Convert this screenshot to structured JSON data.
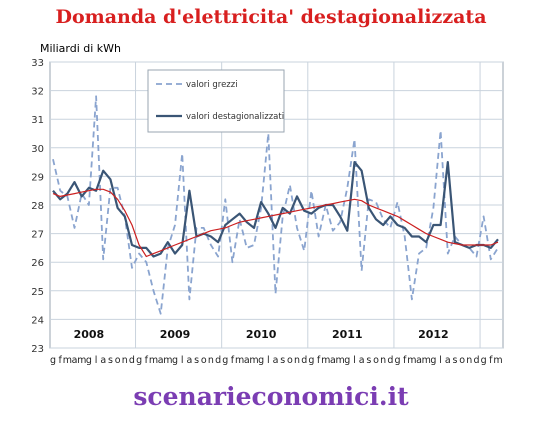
{
  "chart_data": {
    "type": "line",
    "title": "Domanda d'elettricita' destagionalizzata",
    "ylabel": "Miliardi di kWh",
    "ylim": [
      23,
      33
    ],
    "yticks": [
      23,
      24,
      25,
      26,
      27,
      28,
      29,
      30,
      31,
      32,
      33
    ],
    "grid": true,
    "legend_position": "top-left",
    "month_ticks": [
      "g",
      "f",
      "m",
      "a",
      "m",
      "g",
      "l",
      "a",
      "s",
      "o",
      "n",
      "d",
      "g",
      "f",
      "m",
      "a",
      "m",
      "g",
      "l",
      "a",
      "s",
      "o",
      "n",
      "d",
      "g",
      "f",
      "m",
      "a",
      "m",
      "g",
      "l",
      "a",
      "s",
      "o",
      "n",
      "d",
      "g",
      "f",
      "m",
      "a",
      "m",
      "g",
      "l",
      "a",
      "s",
      "o",
      "n",
      "d",
      "g",
      "f",
      "m",
      "a",
      "m",
      "g",
      "l",
      "a",
      "s",
      "o",
      "n",
      "d",
      "g",
      "f",
      "m"
    ],
    "year_labels": [
      {
        "label": "2008",
        "month_index": 5
      },
      {
        "label": "2009",
        "month_index": 17
      },
      {
        "label": "2010",
        "month_index": 29
      },
      {
        "label": "2011",
        "month_index": 41
      },
      {
        "label": "2012",
        "month_index": 53
      }
    ],
    "series": [
      {
        "name": "valori grezzi",
        "color": "#8aa4cf",
        "style": "dashed",
        "values": [
          29.6,
          28.5,
          28.3,
          27.2,
          28.4,
          28.0,
          31.8,
          26.1,
          28.6,
          28.6,
          27.6,
          25.8,
          26.3,
          26.0,
          25.0,
          24.2,
          26.5,
          27.3,
          29.8,
          24.7,
          27.2,
          27.2,
          26.6,
          26.2,
          28.2,
          26.0,
          27.5,
          26.5,
          26.6,
          27.9,
          30.5,
          24.9,
          27.6,
          28.7,
          27.2,
          26.4,
          28.5,
          26.9,
          28.0,
          27.1,
          27.4,
          28.6,
          30.3,
          25.7,
          28.2,
          28.1,
          27.5,
          27.2,
          28.1,
          26.9,
          24.7,
          26.3,
          26.5,
          27.9,
          30.6,
          26.3,
          26.9,
          26.6,
          26.5,
          26.2,
          27.6,
          26.1,
          26.5
        ]
      },
      {
        "name": "valori destagionalizzati",
        "color": "#3a5575",
        "style": "solid",
        "values": [
          28.5,
          28.2,
          28.4,
          28.8,
          28.3,
          28.6,
          28.5,
          29.2,
          28.9,
          27.9,
          27.6,
          26.6,
          26.5,
          26.5,
          26.2,
          26.3,
          26.7,
          26.3,
          26.6,
          28.5,
          26.9,
          27.0,
          26.9,
          26.7,
          27.3,
          27.5,
          27.7,
          27.4,
          27.2,
          28.1,
          27.7,
          27.2,
          27.9,
          27.7,
          28.3,
          27.8,
          27.7,
          27.9,
          28.0,
          28.0,
          27.6,
          27.1,
          29.5,
          29.2,
          27.9,
          27.5,
          27.3,
          27.6,
          27.3,
          27.2,
          26.9,
          26.9,
          26.7,
          27.3,
          27.3,
          29.5,
          26.7,
          26.6,
          26.5,
          26.6,
          26.6,
          26.5,
          26.8
        ]
      },
      {
        "name": "",
        "color": "#cc2020",
        "style": "solid",
        "values": [
          28.4,
          28.3,
          28.35,
          28.4,
          28.45,
          28.5,
          28.55,
          28.55,
          28.45,
          28.2,
          27.8,
          27.3,
          26.6,
          26.2,
          26.3,
          26.4,
          26.5,
          26.6,
          26.7,
          26.8,
          26.9,
          27.0,
          27.1,
          27.15,
          27.2,
          27.3,
          27.4,
          27.45,
          27.5,
          27.55,
          27.6,
          27.65,
          27.7,
          27.75,
          27.8,
          27.85,
          27.9,
          27.95,
          28.0,
          28.05,
          28.1,
          28.15,
          28.2,
          28.15,
          28.0,
          27.9,
          27.8,
          27.7,
          27.6,
          27.45,
          27.3,
          27.15,
          27.0,
          26.9,
          26.8,
          26.7,
          26.65,
          26.6,
          26.6,
          26.6,
          26.6,
          26.6,
          26.7
        ]
      }
    ]
  },
  "footer": {
    "text": "scenarieconomici.it"
  }
}
